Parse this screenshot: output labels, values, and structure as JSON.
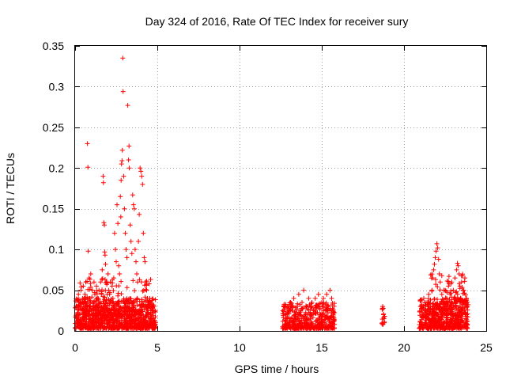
{
  "chart_data": {
    "type": "scatter",
    "title": "Day 324 of 2016, Rate Of TEC Index for receiver sury",
    "xlabel": "GPS time / hours",
    "ylabel": "ROTI / TECUs",
    "xlim": [
      0,
      25
    ],
    "ylim": [
      0,
      0.35
    ],
    "xticks": [
      0,
      5,
      10,
      15,
      20,
      25
    ],
    "xtick_labels": [
      "0",
      "5",
      "10",
      "15",
      "20",
      "25"
    ],
    "yticks": [
      0,
      0.05,
      0.1,
      0.15,
      0.2,
      0.25,
      0.3,
      0.35
    ],
    "ytick_labels": [
      "0",
      "0.05",
      "0.1",
      "0.15",
      "0.2",
      "0.25",
      "0.3",
      "0.35"
    ],
    "grid": true,
    "legend": "none",
    "marker": "+",
    "color": "#ff0000",
    "series": [
      {
        "points": [
          [
            0.1,
            0.012
          ],
          [
            0.15,
            0.03
          ],
          [
            0.2,
            0.045
          ],
          [
            0.25,
            0.02
          ],
          [
            0.3,
            0.035
          ],
          [
            0.35,
            0.05
          ],
          [
            0.4,
            0.025
          ],
          [
            0.45,
            0.04
          ],
          [
            0.5,
            0.055
          ],
          [
            0.55,
            0.018
          ],
          [
            0.6,
            0.045
          ],
          [
            0.65,
            0.06
          ],
          [
            0.7,
            0.03
          ],
          [
            0.75,
            0.23
          ],
          [
            0.78,
            0.201
          ],
          [
            0.8,
            0.098
          ],
          [
            0.85,
            0.065
          ],
          [
            0.9,
            0.04
          ],
          [
            0.95,
            0.07
          ],
          [
            1.0,
            0.025
          ],
          [
            1.05,
            0.05
          ],
          [
            1.1,
            0.035
          ],
          [
            1.15,
            0.06
          ],
          [
            1.2,
            0.045
          ],
          [
            1.25,
            0.03
          ],
          [
            1.3,
            0.055
          ],
          [
            1.35,
            0.04
          ],
          [
            1.4,
            0.02
          ],
          [
            1.45,
            0.05
          ],
          [
            1.5,
            0.035
          ],
          [
            1.55,
            0.06
          ],
          [
            1.6,
            0.045
          ],
          [
            1.65,
            0.075
          ],
          [
            1.7,
            0.19
          ],
          [
            1.72,
            0.182
          ],
          [
            1.75,
            0.133
          ],
          [
            1.78,
            0.13
          ],
          [
            1.8,
            0.097
          ],
          [
            1.82,
            0.093
          ],
          [
            1.85,
            0.082
          ],
          [
            1.9,
            0.06
          ],
          [
            1.95,
            0.045
          ],
          [
            2.0,
            0.07
          ],
          [
            2.05,
            0.05
          ],
          [
            2.1,
            0.035
          ],
          [
            2.15,
            0.06
          ],
          [
            2.2,
            0.025
          ],
          [
            2.25,
            0.055
          ],
          [
            2.3,
            0.04
          ],
          [
            2.35,
            0.065
          ],
          [
            2.4,
            0.12
          ],
          [
            2.45,
            0.1
          ],
          [
            2.5,
            0.085
          ],
          [
            2.55,
            0.155
          ],
          [
            2.6,
            0.132
          ],
          [
            2.65,
            0.08
          ],
          [
            2.7,
            0.07
          ],
          [
            2.75,
            0.165
          ],
          [
            2.78,
            0.14
          ],
          [
            2.8,
            0.185
          ],
          [
            2.82,
            0.205
          ],
          [
            2.85,
            0.209
          ],
          [
            2.87,
            0.222
          ],
          [
            2.9,
            0.335
          ],
          [
            2.92,
            0.294
          ],
          [
            2.95,
            0.19
          ],
          [
            3.0,
            0.15
          ],
          [
            3.05,
            0.12
          ],
          [
            3.1,
            0.1
          ],
          [
            3.15,
            0.09
          ],
          [
            3.2,
            0.277
          ],
          [
            3.25,
            0.21
          ],
          [
            3.28,
            0.227
          ],
          [
            3.3,
            0.2
          ],
          [
            3.35,
            0.13
          ],
          [
            3.4,
            0.11
          ],
          [
            3.45,
            0.095
          ],
          [
            3.5,
            0.167
          ],
          [
            3.55,
            0.155
          ],
          [
            3.6,
            0.15
          ],
          [
            3.65,
            0.1
          ],
          [
            3.7,
            0.085
          ],
          [
            3.75,
            0.07
          ],
          [
            3.8,
            0.06
          ],
          [
            3.85,
            0.11
          ],
          [
            3.9,
            0.143
          ],
          [
            3.95,
            0.2
          ],
          [
            4.0,
            0.196
          ],
          [
            4.05,
            0.19
          ],
          [
            4.1,
            0.18
          ],
          [
            4.15,
            0.12
          ],
          [
            4.2,
            0.09
          ],
          [
            4.25,
            0.085
          ],
          [
            4.3,
            0.06
          ],
          [
            4.35,
            0.05
          ],
          [
            4.4,
            0.04
          ],
          [
            4.5,
            0.03
          ],
          [
            4.6,
            0.035
          ],
          [
            4.7,
            0.025
          ],
          [
            4.8,
            0.03
          ],
          [
            0.2,
            0.01
          ],
          [
            0.4,
            0.008
          ],
          [
            0.6,
            0.015
          ],
          [
            0.8,
            0.01
          ],
          [
            1.0,
            0.012
          ],
          [
            1.2,
            0.008
          ],
          [
            1.4,
            0.015
          ],
          [
            1.6,
            0.01
          ],
          [
            1.8,
            0.012
          ],
          [
            2.0,
            0.008
          ],
          [
            2.2,
            0.015
          ],
          [
            2.4,
            0.01
          ],
          [
            2.6,
            0.012
          ],
          [
            2.8,
            0.008
          ],
          [
            3.0,
            0.015
          ],
          [
            3.2,
            0.01
          ],
          [
            3.4,
            0.012
          ],
          [
            3.6,
            0.008
          ],
          [
            3.8,
            0.015
          ],
          [
            4.0,
            0.01
          ],
          [
            4.2,
            0.012
          ],
          [
            4.4,
            0.008
          ],
          [
            4.6,
            0.015
          ],
          [
            4.8,
            0.01
          ],
          [
            12.8,
            0.02
          ],
          [
            12.9,
            0.03
          ],
          [
            13.0,
            0.015
          ],
          [
            13.1,
            0.035
          ],
          [
            13.2,
            0.025
          ],
          [
            13.3,
            0.04
          ],
          [
            13.4,
            0.02
          ],
          [
            13.5,
            0.03
          ],
          [
            13.6,
            0.045
          ],
          [
            13.7,
            0.025
          ],
          [
            13.8,
            0.035
          ],
          [
            13.9,
            0.05
          ],
          [
            14.0,
            0.02
          ],
          [
            14.1,
            0.03
          ],
          [
            14.2,
            0.04
          ],
          [
            14.3,
            0.015
          ],
          [
            14.4,
            0.035
          ],
          [
            14.5,
            0.025
          ],
          [
            14.6,
            0.04
          ],
          [
            14.7,
            0.03
          ],
          [
            14.8,
            0.045
          ],
          [
            14.9,
            0.02
          ],
          [
            15.0,
            0.035
          ],
          [
            15.1,
            0.04
          ],
          [
            15.2,
            0.025
          ],
          [
            15.3,
            0.045
          ],
          [
            15.4,
            0.03
          ],
          [
            15.5,
            0.05
          ],
          [
            15.6,
            0.04
          ],
          [
            15.7,
            0.02
          ],
          [
            18.7,
            0.03
          ],
          [
            18.72,
            0.028
          ],
          [
            18.75,
            0.02
          ],
          [
            18.78,
            0.015
          ],
          [
            18.8,
            0.01
          ],
          [
            18.82,
            0.018
          ],
          [
            21.0,
            0.03
          ],
          [
            21.1,
            0.02
          ],
          [
            21.2,
            0.04
          ],
          [
            21.3,
            0.025
          ],
          [
            21.4,
            0.035
          ],
          [
            21.5,
            0.045
          ],
          [
            21.6,
            0.03
          ],
          [
            21.7,
            0.05
          ],
          [
            21.75,
            0.065
          ],
          [
            21.8,
            0.075
          ],
          [
            21.85,
            0.082
          ],
          [
            21.9,
            0.09
          ],
          [
            21.95,
            0.098
          ],
          [
            22.0,
            0.107
          ],
          [
            22.05,
            0.102
          ],
          [
            22.1,
            0.088
          ],
          [
            22.15,
            0.07
          ],
          [
            22.2,
            0.06
          ],
          [
            22.3,
            0.045
          ],
          [
            22.4,
            0.035
          ],
          [
            22.5,
            0.05
          ],
          [
            22.6,
            0.04
          ],
          [
            22.7,
            0.055
          ],
          [
            22.8,
            0.045
          ],
          [
            22.9,
            0.06
          ],
          [
            23.0,
            0.05
          ],
          [
            23.1,
            0.065
          ],
          [
            23.2,
            0.075
          ],
          [
            23.25,
            0.083
          ],
          [
            23.3,
            0.08
          ],
          [
            23.35,
            0.07
          ],
          [
            23.4,
            0.055
          ],
          [
            23.5,
            0.06
          ],
          [
            23.6,
            0.05
          ],
          [
            23.7,
            0.065
          ],
          [
            23.8,
            0.04
          ],
          [
            23.85,
            0.03
          ]
        ]
      }
    ],
    "dense_bands": [
      {
        "x_range": [
          0.0,
          4.9
        ],
        "y_range": [
          0.003,
          0.04
        ],
        "count": 900
      },
      {
        "x_range": [
          0.3,
          4.6
        ],
        "y_range": [
          0.02,
          0.065
        ],
        "count": 180
      },
      {
        "x_range": [
          12.6,
          15.8
        ],
        "y_range": [
          0.003,
          0.035
        ],
        "count": 450
      },
      {
        "x_range": [
          18.65,
          18.85
        ],
        "y_range": [
          0.008,
          0.032
        ],
        "count": 12
      },
      {
        "x_range": [
          20.9,
          23.9
        ],
        "y_range": [
          0.003,
          0.04
        ],
        "count": 550
      },
      {
        "x_range": [
          21.6,
          23.8
        ],
        "y_range": [
          0.02,
          0.07
        ],
        "count": 120
      }
    ]
  }
}
